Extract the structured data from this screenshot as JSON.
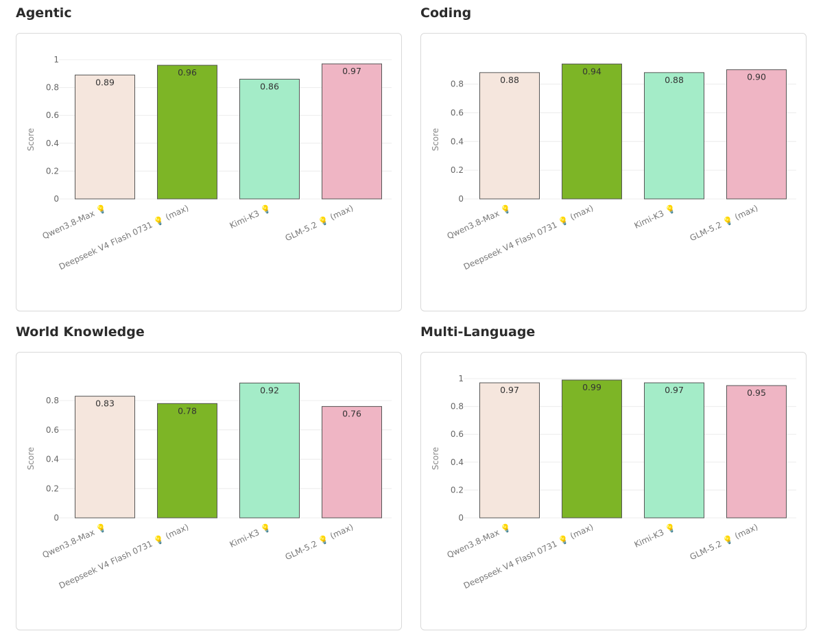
{
  "panels": [
    {
      "title": "Agentic",
      "chart_data": {
        "type": "bar",
        "ylabel": "Score",
        "ylim": [
          0,
          1
        ],
        "yticks": [
          "0",
          "0.2",
          "0.4",
          "0.6",
          "0.8",
          "1"
        ],
        "categories": [
          "Qwen3.8-Max 💡",
          "Deepseek V4 Flash 0731 💡 (max)",
          "Kimi-K3 💡",
          "GLM-5.2 💡 (max)"
        ],
        "values": [
          0.89,
          0.96,
          0.86,
          0.97
        ],
        "labels": [
          "0.89",
          "0.96",
          "0.86",
          "0.97"
        ],
        "colors": [
          "#f5e6dd",
          "#7db526",
          "#a4ecc8",
          "#efb5c4"
        ],
        "grid": true
      }
    },
    {
      "title": "Coding",
      "chart_data": {
        "type": "bar",
        "ylabel": "Score",
        "ylim": [
          0,
          0.97
        ],
        "yticks": [
          "0",
          "0.2",
          "0.4",
          "0.6",
          "0.8"
        ],
        "categories": [
          "Qwen3.8-Max 💡",
          "Deepseek V4 Flash 0731 💡 (max)",
          "Kimi-K3 💡",
          "GLM-5.2 💡 (max)"
        ],
        "values": [
          0.88,
          0.94,
          0.88,
          0.9
        ],
        "labels": [
          "0.88",
          "0.94",
          "0.88",
          "0.90"
        ],
        "colors": [
          "#f5e6dd",
          "#7db526",
          "#a4ecc8",
          "#efb5c4"
        ],
        "grid": true
      }
    },
    {
      "title": "World Knowledge",
      "chart_data": {
        "type": "bar",
        "ylabel": "Score",
        "ylim": [
          0,
          0.95
        ],
        "yticks": [
          "0",
          "0.2",
          "0.4",
          "0.6",
          "0.8"
        ],
        "categories": [
          "Qwen3.8-Max 💡",
          "Deepseek V4 Flash 0731 💡 (max)",
          "Kimi-K3 💡",
          "GLM-5.2 💡 (max)"
        ],
        "values": [
          0.83,
          0.78,
          0.92,
          0.76
        ],
        "labels": [
          "0.83",
          "0.78",
          "0.92",
          "0.76"
        ],
        "colors": [
          "#f5e6dd",
          "#7db526",
          "#a4ecc8",
          "#efb5c4"
        ],
        "grid": true
      }
    },
    {
      "title": "Multi-Language",
      "chart_data": {
        "type": "bar",
        "ylabel": "Score",
        "ylim": [
          0,
          1
        ],
        "yticks": [
          "0",
          "0.2",
          "0.4",
          "0.6",
          "0.8",
          "1"
        ],
        "categories": [
          "Qwen3.8-Max 💡",
          "Deepseek V4 Flash 0731 💡 (max)",
          "Kimi-K3 💡",
          "GLM-5.2 💡 (max)"
        ],
        "values": [
          0.97,
          0.99,
          0.97,
          0.95
        ],
        "labels": [
          "0.97",
          "0.99",
          "0.97",
          "0.95"
        ],
        "colors": [
          "#f5e6dd",
          "#7db526",
          "#a4ecc8",
          "#efb5c4"
        ],
        "grid": true
      }
    }
  ]
}
